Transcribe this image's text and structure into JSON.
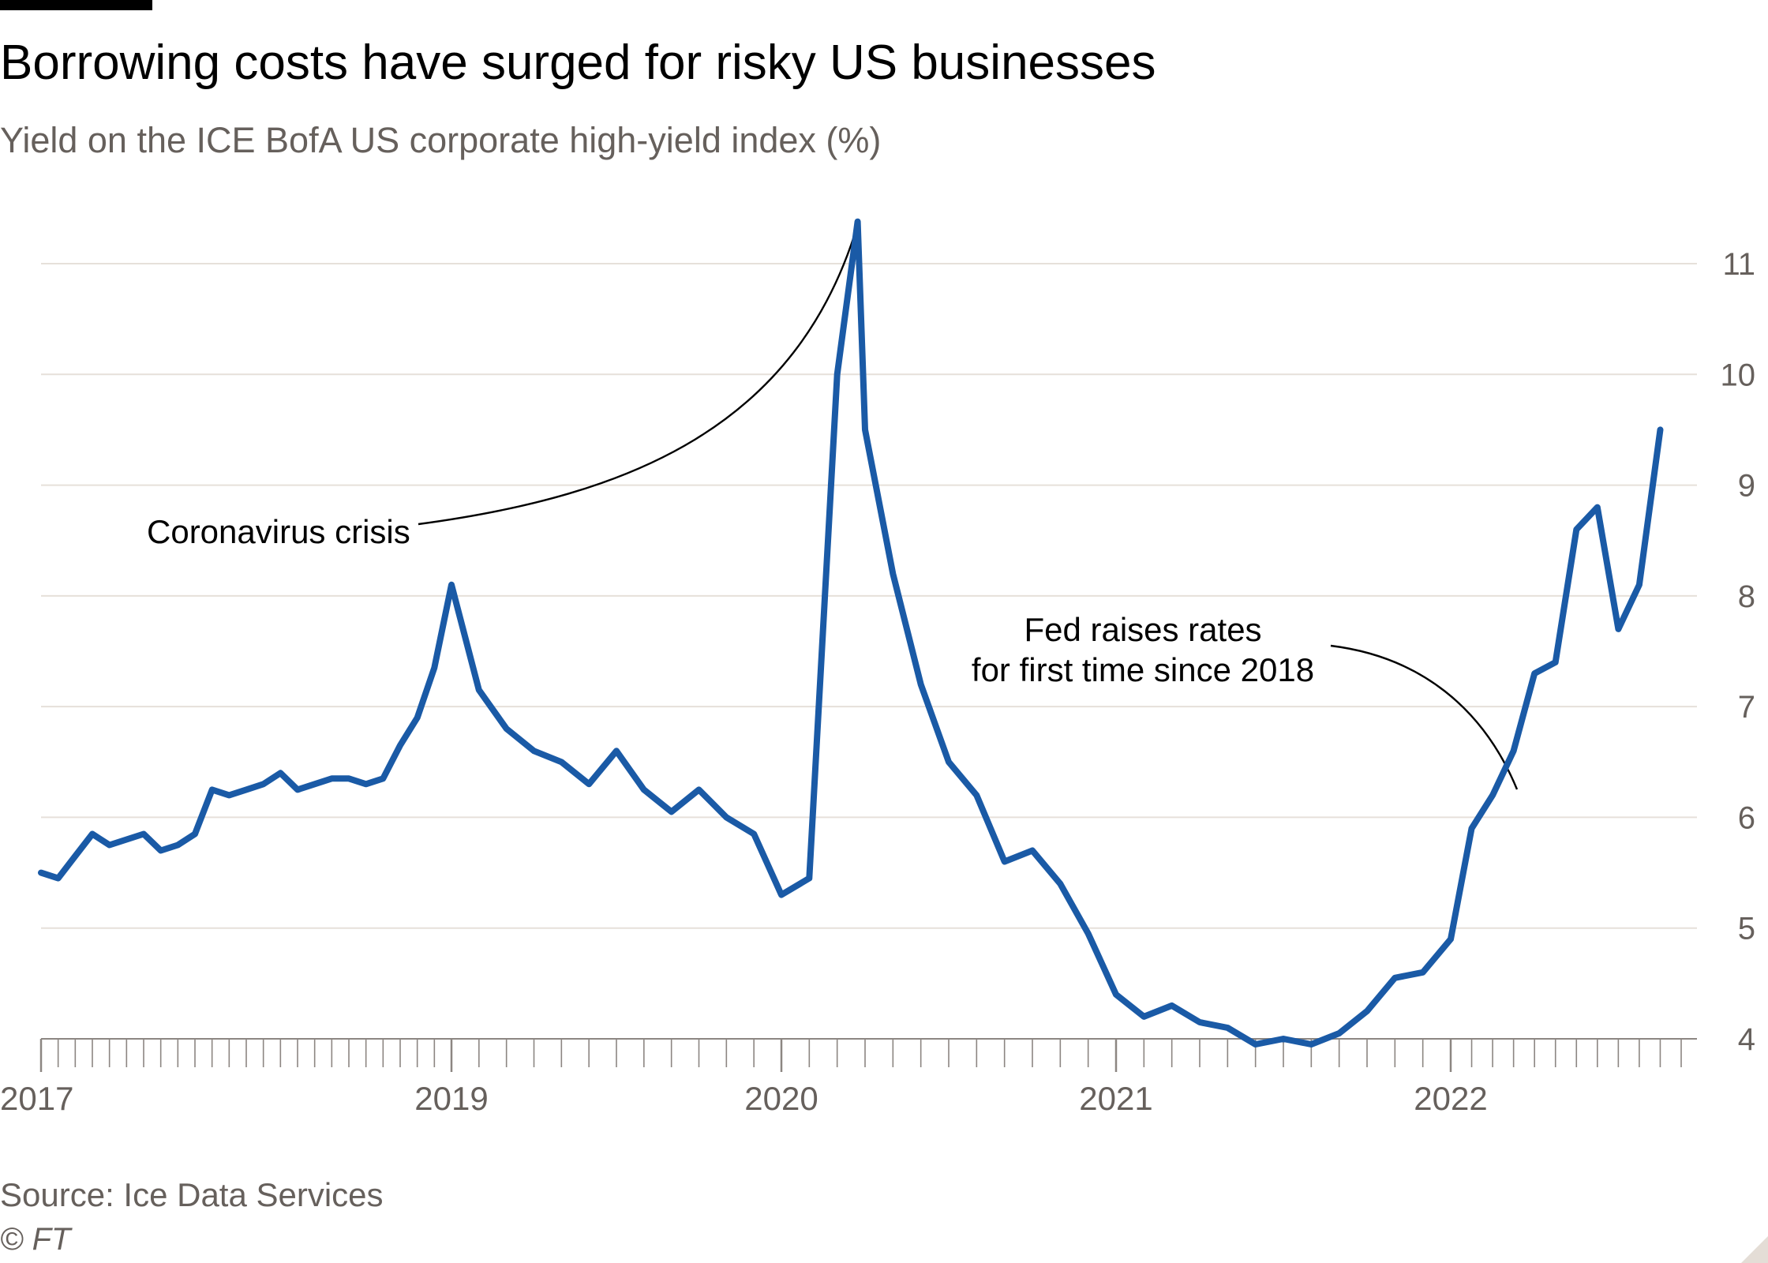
{
  "header": {
    "title": "Borrowing costs have surged for risky US businesses",
    "subtitle": "Yield on the ICE BofA US corporate high-yield index (%)"
  },
  "footer": {
    "source": "Source: Ice Data Services",
    "copyright": "© FT"
  },
  "colors": {
    "line": "#1a5aa6",
    "grid": "#e6e0da",
    "axis_text": "#66605c",
    "tick": "#8c8682",
    "annotation": "#000000"
  },
  "chart_data": {
    "type": "line",
    "title": "Borrowing costs have surged for risky US businesses",
    "subtitle": "Yield on the ICE BofA US corporate high-yield index (%)",
    "xlabel": "",
    "ylabel": "",
    "ylim": [
      4,
      11
    ],
    "y_ticks": [
      4,
      5,
      6,
      7,
      8,
      9,
      10,
      11
    ],
    "y_axis_side": "right",
    "grid": true,
    "x_tick_labels": [
      "2017",
      "2019",
      "2020",
      "2021",
      "2022"
    ],
    "series": [
      {
        "values": [
          [
            "2017-01",
            5.5
          ],
          [
            "2017-02",
            5.45
          ],
          [
            "2017-03",
            5.65
          ],
          [
            "2017-04",
            5.85
          ],
          [
            "2017-05",
            5.75
          ],
          [
            "2017-06",
            5.8
          ],
          [
            "2017-07",
            5.85
          ],
          [
            "2017-08",
            5.7
          ],
          [
            "2017-09",
            5.75
          ],
          [
            "2017-10",
            5.85
          ],
          [
            "2017-11",
            6.25
          ],
          [
            "2017-12",
            6.2
          ],
          [
            "2018-01",
            6.25
          ],
          [
            "2018-02",
            6.3
          ],
          [
            "2018-03",
            6.4
          ],
          [
            "2018-04",
            6.25
          ],
          [
            "2018-05",
            6.3
          ],
          [
            "2018-06",
            6.35
          ],
          [
            "2018-07",
            6.35
          ],
          [
            "2018-08",
            6.3
          ],
          [
            "2018-09",
            6.35
          ],
          [
            "2018-10",
            6.65
          ],
          [
            "2018-11",
            6.9
          ],
          [
            "2018-12",
            7.35
          ],
          [
            "2019-01",
            8.1
          ],
          [
            "2019-02",
            7.15
          ],
          [
            "2019-03",
            6.8
          ],
          [
            "2019-04",
            6.6
          ],
          [
            "2019-05",
            6.5
          ],
          [
            "2019-06",
            6.3
          ],
          [
            "2019-07",
            6.6
          ],
          [
            "2019-08",
            6.25
          ],
          [
            "2019-09",
            6.05
          ],
          [
            "2019-10",
            6.25
          ],
          [
            "2019-11",
            6.0
          ],
          [
            "2019-12",
            5.85
          ],
          [
            "2020-01",
            5.3
          ],
          [
            "2020-02",
            5.45
          ],
          [
            "2020-03",
            10.0
          ],
          [
            "2020-03-23",
            11.38
          ],
          [
            "2020-04",
            9.5
          ],
          [
            "2020-05",
            8.2
          ],
          [
            "2020-06",
            7.2
          ],
          [
            "2020-07",
            6.5
          ],
          [
            "2020-08",
            6.2
          ],
          [
            "2020-09",
            5.6
          ],
          [
            "2020-10",
            5.7
          ],
          [
            "2020-11",
            5.4
          ],
          [
            "2020-12",
            4.95
          ],
          [
            "2021-01",
            4.4
          ],
          [
            "2021-02",
            4.2
          ],
          [
            "2021-03",
            4.3
          ],
          [
            "2021-04",
            4.15
          ],
          [
            "2021-05",
            4.1
          ],
          [
            "2021-06",
            3.95
          ],
          [
            "2021-07",
            4.0
          ],
          [
            "2021-08",
            3.95
          ],
          [
            "2021-09",
            4.05
          ],
          [
            "2021-10",
            4.25
          ],
          [
            "2021-11",
            4.55
          ],
          [
            "2021-12",
            4.6
          ],
          [
            "2022-01",
            4.9
          ],
          [
            "2022-02",
            5.9
          ],
          [
            "2022-03",
            6.2
          ],
          [
            "2022-04",
            6.6
          ],
          [
            "2022-05",
            7.3
          ],
          [
            "2022-06",
            7.4
          ],
          [
            "2022-07",
            8.6
          ],
          [
            "2022-08",
            8.8
          ],
          [
            "2022-09",
            7.7
          ],
          [
            "2022-10",
            8.1
          ],
          [
            "2022-11",
            9.5
          ]
        ]
      }
    ],
    "annotations": [
      {
        "text": "Coronavirus crisis"
      },
      {
        "text_lines": [
          "Fed raises rates",
          "for first time since 2018"
        ]
      }
    ]
  }
}
